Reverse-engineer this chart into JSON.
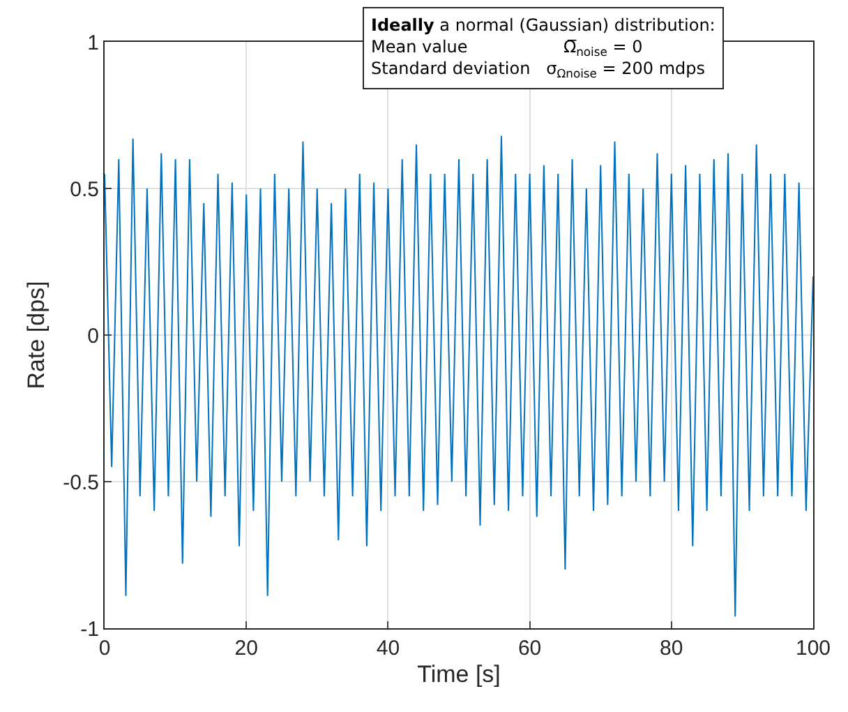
{
  "chart_data": {
    "type": "line",
    "xlabel": "Time [s]",
    "ylabel": "Rate [dps]",
    "x": [
      0,
      1,
      2,
      3,
      4,
      5,
      6,
      7,
      8,
      9,
      10,
      11,
      12,
      13,
      14,
      15,
      16,
      17,
      18,
      19,
      20,
      21,
      22,
      23,
      24,
      25,
      26,
      27,
      28,
      29,
      30,
      31,
      32,
      33,
      34,
      35,
      36,
      37,
      38,
      39,
      40,
      41,
      42,
      43,
      44,
      45,
      46,
      47,
      48,
      49,
      50,
      51,
      52,
      53,
      54,
      55,
      56,
      57,
      58,
      59,
      60,
      61,
      62,
      63,
      64,
      65,
      66,
      67,
      68,
      69,
      70,
      71,
      72,
      73,
      74,
      75,
      76,
      77,
      78,
      79,
      80,
      81,
      82,
      83,
      84,
      85,
      86,
      87,
      88,
      89,
      90,
      91,
      92,
      93,
      94,
      95,
      96,
      97,
      98,
      99,
      100
    ],
    "series": [
      {
        "color": "#0072bd",
        "values": [
          0.55,
          -0.45,
          0.6,
          -0.89,
          0.67,
          -0.55,
          0.5,
          -0.6,
          0.62,
          -0.55,
          0.6,
          -0.78,
          0.6,
          -0.5,
          0.45,
          -0.62,
          0.55,
          -0.55,
          0.52,
          -0.72,
          0.48,
          -0.6,
          0.5,
          -0.89,
          0.55,
          -0.5,
          0.5,
          -0.55,
          0.66,
          -0.5,
          0.5,
          -0.55,
          0.45,
          -0.7,
          0.5,
          -0.55,
          0.55,
          -0.72,
          0.52,
          -0.6,
          0.5,
          -0.55,
          0.6,
          -0.55,
          0.65,
          -0.6,
          0.55,
          -0.58,
          0.55,
          -0.5,
          0.6,
          -0.55,
          0.55,
          -0.65,
          0.6,
          -0.58,
          0.68,
          -0.6,
          0.55,
          -0.55,
          0.55,
          -0.62,
          0.58,
          -0.55,
          0.55,
          -0.8,
          0.6,
          -0.55,
          0.5,
          -0.6,
          0.58,
          -0.58,
          0.66,
          -0.55,
          0.55,
          -0.5,
          0.5,
          -0.55,
          0.62,
          -0.5,
          0.55,
          -0.6,
          0.58,
          -0.72,
          0.55,
          -0.6,
          0.6,
          -0.55,
          0.62,
          -0.96,
          0.55,
          -0.6,
          0.65,
          -0.55,
          0.55,
          -0.55,
          0.55,
          -0.55,
          0.52,
          -0.6,
          0.2
        ]
      }
    ],
    "xlim": [
      0,
      100
    ],
    "xticks": [
      0,
      20,
      40,
      60,
      80,
      100
    ],
    "ylim": [
      -1,
      1
    ],
    "yticks": [
      -1,
      -0.5,
      0,
      0.5,
      1
    ],
    "grid": true,
    "marker": "none",
    "line_style": "solid",
    "annotations": [
      "Ideally a normal (Gaussian) distribution:\nMean value                  Ω̅$_{noise}$ = 0\nStandard deviation   σ$_{Ωnoise}$ = 200 mdps"
    ]
  }
}
